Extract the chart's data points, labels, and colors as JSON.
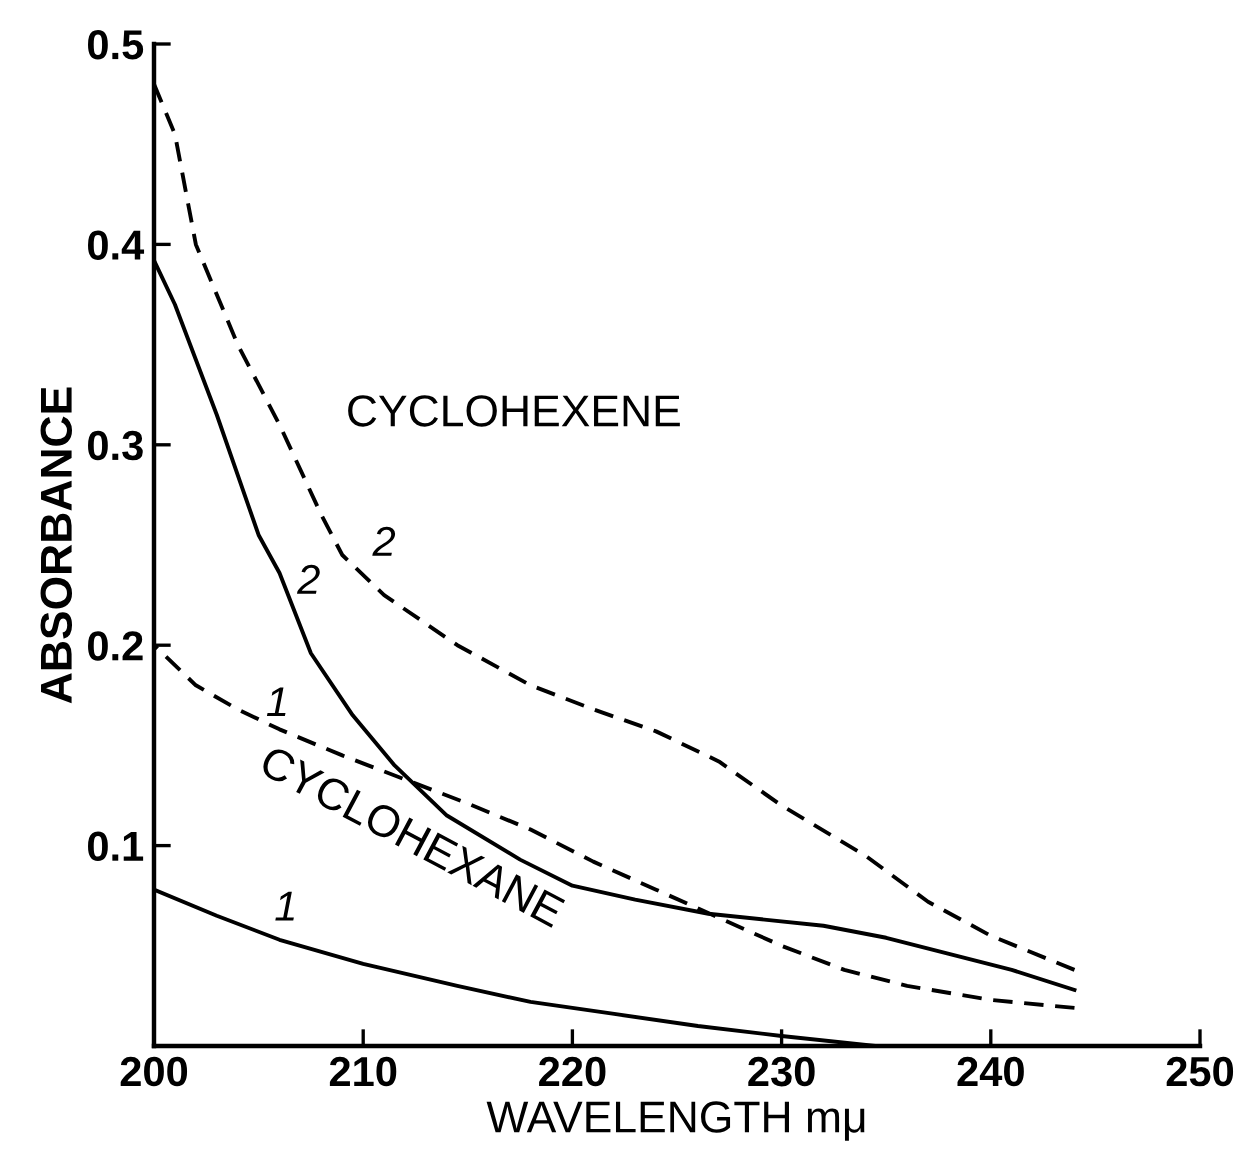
{
  "chart_data": {
    "type": "line",
    "xlabel": "WAVELENGTH mμ",
    "ylabel": "ABSORBANCE",
    "xlim": [
      200,
      250
    ],
    "ylim": [
      0,
      0.5
    ],
    "xticks": [
      200,
      210,
      220,
      230,
      240,
      250
    ],
    "yticks": [
      0.1,
      0.2,
      0.3,
      0.4,
      0.5
    ],
    "grid": false,
    "legend": false,
    "marker": "none",
    "series": [
      {
        "name": "2",
        "color": "#000000",
        "line_style": "dashed",
        "x": [
          200,
          201,
          202,
          204,
          206,
          208,
          209,
          211,
          214.5,
          218,
          221,
          224,
          227,
          230,
          234,
          237,
          240,
          244
        ],
        "values": [
          0.48,
          0.455,
          0.4,
          0.35,
          0.31,
          0.265,
          0.245,
          0.225,
          0.2,
          0.18,
          0.168,
          0.157,
          0.142,
          0.12,
          0.095,
          0.072,
          0.055,
          0.038
        ]
      },
      {
        "name": "2",
        "color": "#000000",
        "line_style": "solid",
        "x": [
          200,
          201,
          203,
          205,
          206,
          207.5,
          209.5,
          211.5,
          214,
          217.5,
          220,
          223,
          226.5,
          232,
          235,
          238,
          241,
          244
        ],
        "values": [
          0.392,
          0.37,
          0.315,
          0.255,
          0.236,
          0.196,
          0.165,
          0.14,
          0.115,
          0.093,
          0.08,
          0.073,
          0.066,
          0.06,
          0.054,
          0.046,
          0.038,
          0.028
        ]
      },
      {
        "name": "1",
        "color": "#000000",
        "line_style": "dashed",
        "x": [
          200,
          202,
          204,
          206,
          209,
          212,
          215,
          218,
          221,
          224,
          227,
          230,
          233,
          236,
          240,
          244
        ],
        "values": [
          0.2,
          0.18,
          0.168,
          0.158,
          0.145,
          0.133,
          0.121,
          0.108,
          0.092,
          0.078,
          0.064,
          0.05,
          0.038,
          0.03,
          0.023,
          0.019
        ]
      },
      {
        "name": "1",
        "color": "#000000",
        "line_style": "solid",
        "x": [
          200,
          203,
          206,
          210,
          214.5,
          218,
          222,
          226,
          230,
          234.5
        ],
        "values": [
          0.078,
          0.065,
          0.053,
          0.041,
          0.03,
          0.022,
          0.016,
          0.01,
          0.005,
          0
        ]
      }
    ],
    "annotations": [
      "CYCLOHEXENE",
      "CYCLOHEXANE"
    ]
  }
}
